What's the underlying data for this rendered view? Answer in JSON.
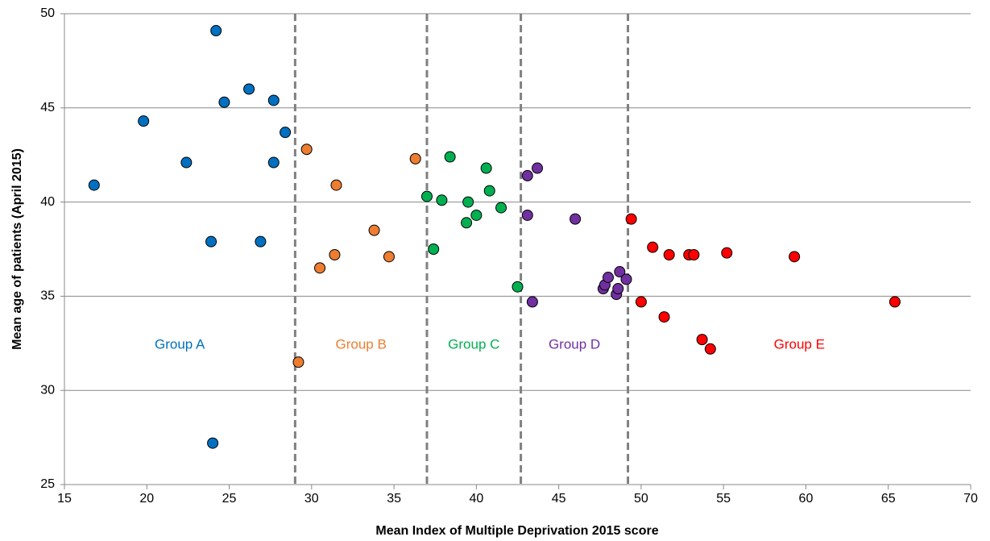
{
  "chart_data": {
    "type": "scatter",
    "x_label": "Mean Index of Multiple Deprivation 2015 score",
    "y_label": "Mean age of patients (April 2015)",
    "xlim": [
      15,
      70
    ],
    "xticks": [
      15,
      20,
      25,
      30,
      35,
      40,
      45,
      50,
      55,
      60,
      65,
      70
    ],
    "ylim": [
      25,
      50
    ],
    "yticks": [
      25,
      30,
      35,
      40,
      45,
      50
    ],
    "grid": true,
    "dividers": [
      29.0,
      37.0,
      42.7,
      49.2
    ],
    "series": [
      {
        "name": "Group A",
        "color": "#0070c0",
        "x": [
          16.8,
          19.8,
          22.4,
          23.9,
          24.2,
          24.7,
          26.2,
          26.9,
          27.7,
          27.7,
          28.4,
          24.0
        ],
        "values": [
          40.9,
          44.3,
          42.1,
          37.9,
          49.1,
          45.3,
          46.0,
          37.9,
          45.4,
          42.1,
          43.7,
          27.2
        ]
      },
      {
        "name": "Group B",
        "color": "#ed7d31",
        "x": [
          29.7,
          29.2,
          30.5,
          31.5,
          31.4,
          33.8,
          34.7,
          36.3
        ],
        "values": [
          42.8,
          31.5,
          36.5,
          40.9,
          37.2,
          38.5,
          37.1,
          42.3
        ]
      },
      {
        "name": "Group C",
        "color": "#00b050",
        "x": [
          37.0,
          37.4,
          37.9,
          38.4,
          39.4,
          39.5,
          40.0,
          40.6,
          40.8,
          41.5,
          42.5
        ],
        "values": [
          40.3,
          37.5,
          40.1,
          42.4,
          38.9,
          40.0,
          39.3,
          41.8,
          40.6,
          39.7,
          35.5
        ]
      },
      {
        "name": "Group D",
        "color": "#7030a0",
        "x": [
          43.1,
          43.7,
          43.1,
          43.4,
          46.0,
          47.7,
          47.8,
          48.0,
          48.5,
          48.6,
          48.7,
          49.1
        ],
        "values": [
          41.4,
          41.8,
          39.3,
          34.7,
          39.1,
          35.4,
          35.6,
          36.0,
          35.1,
          35.4,
          36.3,
          35.9
        ]
      },
      {
        "name": "Group E",
        "color": "#ff0000",
        "x": [
          49.4,
          50.0,
          50.7,
          51.4,
          51.7,
          52.9,
          53.2,
          53.7,
          54.2,
          55.2,
          59.3,
          65.4
        ],
        "values": [
          39.1,
          34.7,
          37.6,
          33.9,
          37.2,
          37.2,
          37.2,
          32.7,
          32.2,
          37.3,
          37.1,
          34.7
        ]
      }
    ]
  }
}
